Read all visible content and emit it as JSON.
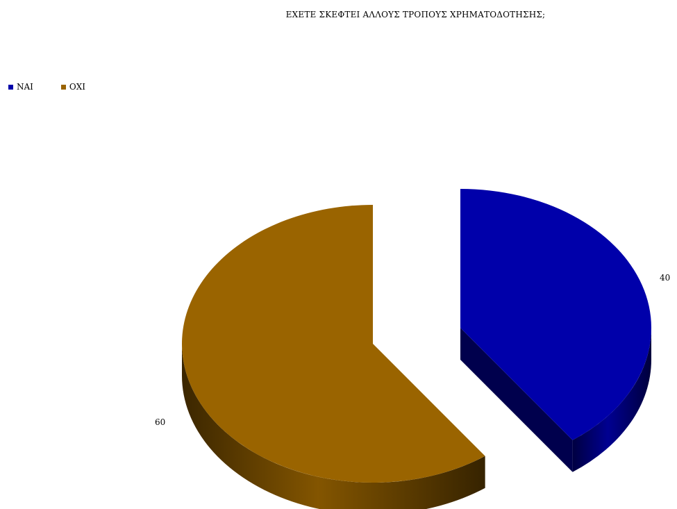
{
  "chart_data": {
    "type": "pie",
    "title": "ΕΧΕΤΕ ΣΚΕΦΤΕΙ ΑΛΛΟΥΣ ΤΡΟΠΟΥΣ ΧΡΗΜΑΤΟΔΟΤΗΣΗΣ;",
    "legend_position": "top-left",
    "style": "3d-exploded",
    "slices": [
      {
        "label": "ΝΑΙ",
        "value": 40,
        "color": "#0000aa"
      },
      {
        "label": "ΟΧΙ",
        "value": 60,
        "color": "#9a6400"
      }
    ]
  }
}
